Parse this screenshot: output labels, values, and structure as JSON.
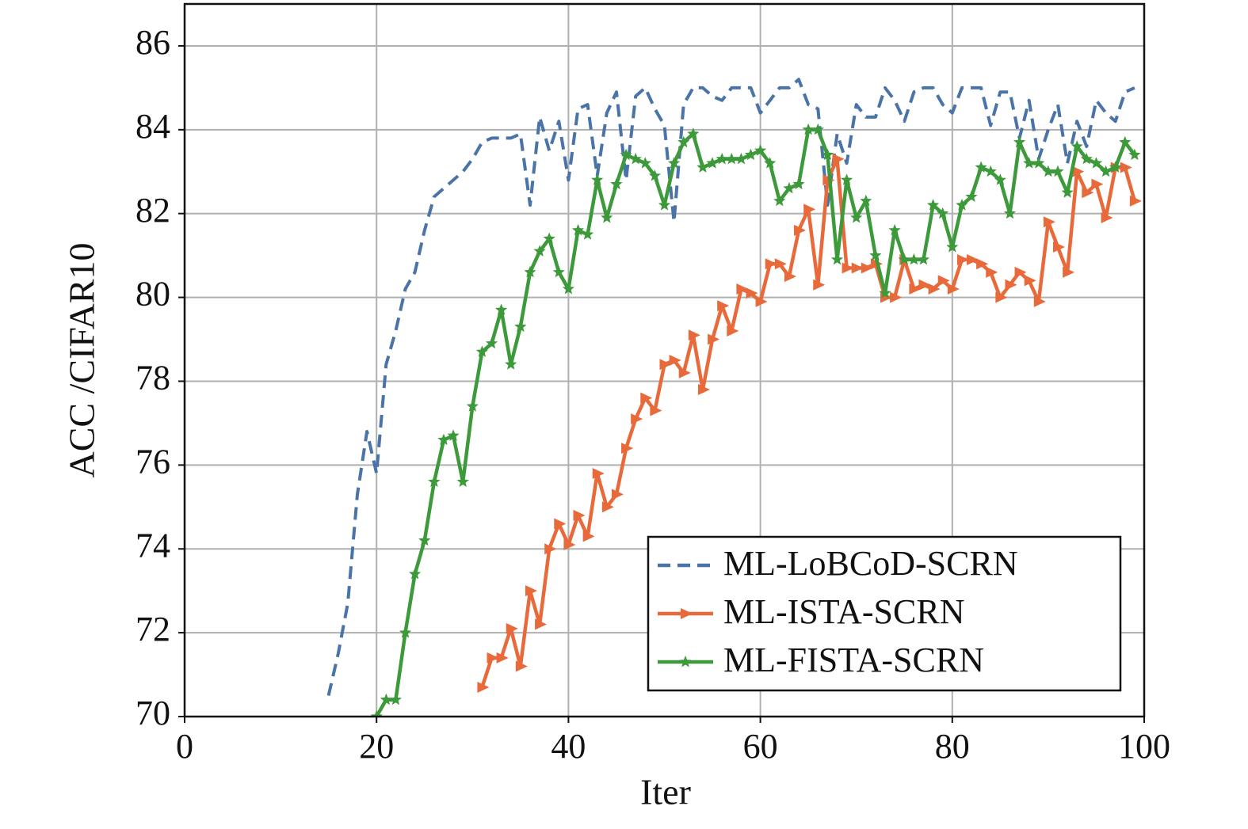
{
  "chart_data": {
    "type": "line",
    "xlabel": "Iter",
    "ylabel": "ACC /CIFAR10",
    "x": [
      15,
      16,
      17,
      18,
      19,
      20,
      21,
      22,
      23,
      24,
      25,
      26,
      27,
      28,
      29,
      30,
      31,
      32,
      33,
      34,
      35,
      36,
      37,
      38,
      39,
      40,
      41,
      42,
      43,
      44,
      45,
      46,
      47,
      48,
      49,
      50,
      51,
      52,
      53,
      54,
      55,
      56,
      57,
      58,
      59,
      60,
      61,
      62,
      63,
      64,
      65,
      66,
      67,
      68,
      69,
      70,
      71,
      72,
      73,
      74,
      75,
      76,
      77,
      78,
      79,
      80,
      81,
      82,
      83,
      84,
      85,
      86,
      87,
      88,
      89,
      90,
      91,
      92,
      93,
      94,
      95,
      96,
      97,
      98,
      99
    ],
    "series": [
      {
        "name": "ML-LoBCoD-SCRN",
        "color": "#4a74a8",
        "dash": true,
        "marker": "none",
        "values": [
          70.5,
          71.5,
          72.7,
          75.3,
          76.8,
          75.8,
          78.4,
          79.2,
          80.2,
          80.6,
          81.6,
          82.4,
          82.6,
          82.8,
          83.0,
          83.3,
          83.7,
          83.8,
          83.8,
          83.8,
          83.9,
          82.2,
          84.3,
          83.5,
          84.2,
          82.8,
          84.5,
          84.6,
          82.9,
          84.4,
          84.9,
          82.8,
          84.8,
          85.0,
          84.5,
          84.1,
          81.8,
          84.6,
          85.0,
          85.0,
          84.8,
          84.7,
          85.0,
          85.0,
          85.0,
          84.4,
          84.7,
          85.0,
          85.0,
          85.2,
          84.6,
          84.5,
          82.2,
          83.9,
          83.2,
          84.6,
          84.3,
          84.3,
          85.0,
          84.7,
          84.2,
          84.9,
          85.0,
          85.0,
          84.6,
          84.4,
          85.0,
          85.0,
          85.0,
          84.1,
          84.9,
          84.9,
          83.8,
          84.7,
          83.3,
          84.0,
          84.6,
          83.2,
          84.2,
          83.6,
          84.7,
          84.4,
          84.2,
          84.9,
          85.0
        ]
      },
      {
        "name": "ML-ISTA-SCRN",
        "color": "#e8693a",
        "dash": false,
        "marker": "triangle",
        "values": [
          null,
          null,
          null,
          null,
          null,
          null,
          null,
          null,
          null,
          null,
          null,
          null,
          null,
          null,
          null,
          null,
          70.7,
          71.4,
          71.4,
          72.1,
          71.2,
          73.0,
          72.2,
          74.0,
          74.6,
          74.1,
          74.8,
          74.3,
          75.8,
          75.0,
          75.3,
          76.4,
          77.1,
          77.6,
          77.3,
          78.4,
          78.5,
          78.2,
          79.1,
          77.8,
          79.0,
          79.8,
          79.2,
          80.2,
          80.1,
          79.9,
          80.8,
          80.8,
          80.5,
          81.6,
          82.1,
          80.3,
          82.8,
          83.3,
          80.7,
          80.7,
          80.7,
          80.8,
          80.0,
          80.0,
          80.9,
          80.2,
          80.3,
          80.2,
          80.4,
          80.2,
          80.9,
          80.9,
          80.8,
          80.6,
          80.0,
          80.3,
          80.6,
          80.4,
          79.9,
          81.8,
          81.2,
          80.6,
          83.0,
          82.5,
          82.7,
          81.9,
          83.1,
          83.1,
          82.3
        ]
      },
      {
        "name": "ML-FISTA-SCRN",
        "color": "#3d9a3a",
        "dash": false,
        "marker": "star",
        "values": [
          null,
          null,
          null,
          null,
          null,
          70.0,
          70.4,
          70.4,
          72.0,
          73.4,
          74.2,
          75.6,
          76.6,
          76.7,
          75.6,
          77.4,
          78.7,
          78.9,
          79.7,
          78.4,
          79.3,
          80.6,
          81.1,
          81.4,
          80.6,
          80.2,
          81.6,
          81.5,
          82.8,
          81.9,
          82.7,
          83.4,
          83.3,
          83.2,
          82.9,
          82.2,
          83.2,
          83.7,
          83.9,
          83.1,
          83.2,
          83.3,
          83.3,
          83.3,
          83.4,
          83.5,
          83.2,
          82.3,
          82.6,
          82.7,
          84.0,
          84.0,
          83.4,
          80.9,
          82.8,
          81.9,
          82.3,
          81.0,
          80.1,
          81.6,
          80.9,
          80.9,
          80.9,
          82.2,
          82.0,
          81.2,
          82.2,
          82.4,
          83.1,
          83.0,
          82.8,
          82.0,
          83.7,
          83.2,
          83.2,
          83.0,
          83.0,
          82.5,
          83.6,
          83.3,
          83.2,
          83.0,
          83.1,
          83.7,
          83.4
        ]
      }
    ],
    "xlim": [
      0,
      100
    ],
    "xticks": [
      0,
      20,
      40,
      60,
      80,
      100
    ],
    "ylim": [
      70,
      87
    ],
    "yticks": [
      70,
      72,
      74,
      76,
      78,
      80,
      82,
      84,
      86
    ],
    "grid": true,
    "legend": "lower right"
  }
}
